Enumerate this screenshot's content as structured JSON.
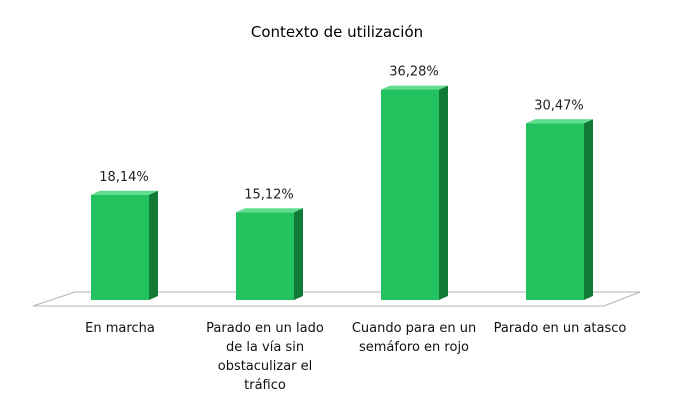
{
  "chart_data": {
    "type": "bar",
    "title": "Contexto de utilización",
    "categories": [
      "En marcha",
      "Parado en un lado de la vía sin obstaculizar el tráfico",
      "Cuando para en un semáforo en rojo",
      "Parado en un atasco"
    ],
    "category_lines": [
      [
        "En marcha"
      ],
      [
        "Parado en un lado",
        "de la vía sin",
        "obstaculizar el",
        "tráfico"
      ],
      [
        "Cuando para en un",
        "semáforo en rojo"
      ],
      [
        "Parado en un atasco"
      ]
    ],
    "values": [
      18.14,
      15.12,
      36.28,
      30.47
    ],
    "data_labels": [
      "18,14%",
      "15,12%",
      "36,28%",
      "30,47%"
    ],
    "ylim": [
      0,
      40
    ],
    "grid": false,
    "legend": "none",
    "style": "3d-column",
    "colors": {
      "bar_front": "#22c35e",
      "bar_side": "#127a37",
      "bar_top": "#5fdc8c",
      "floor_fill": "#ffffff",
      "floor_stroke": "#b3b3b3"
    }
  }
}
